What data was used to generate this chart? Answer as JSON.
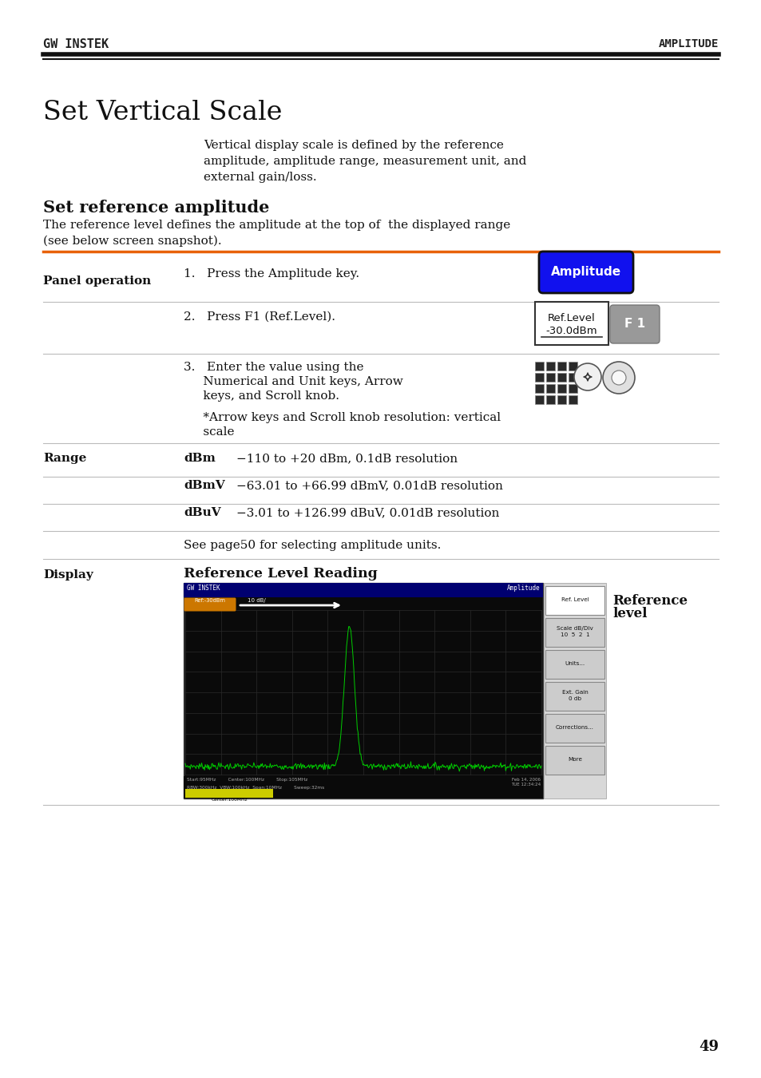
{
  "page_bg": "#ffffff",
  "header_logo": "GW INSTEK",
  "header_right": "AMPLITUDE",
  "title": "Set Vertical Scale",
  "intro_text": "Vertical display scale is defined by the reference\namplitude, amplitude range, measurement unit, and\nexternal gain/loss.",
  "section_title": "Set reference amplitude",
  "section_intro1": "The reference level defines the amplitude at the top of  the displayed range",
  "section_intro2": "(see below screen snapshot).",
  "panel_op_label": "Panel operation",
  "step1_text": "1.   Press the Amplitude key.",
  "step2_text": "2.   Press F1 (Ref.Level).",
  "step3_line1": "3.   Enter the value using the",
  "step3_line2": "     Numerical and Unit keys, Arrow",
  "step3_line3": "     keys, and Scroll knob.",
  "step3_note1": "     *Arrow keys and Scroll knob resolution: vertical",
  "step3_note2": "     scale",
  "range_label": "Range",
  "range_rows": [
    [
      "dBm",
      "−110 to +20 dBm, 0.1dB resolution"
    ],
    [
      "dBmV",
      "−63.01 to +66.99 dBmV, 0.01dB resolution"
    ],
    [
      "dBuV",
      "−3.01 to +126.99 dBuV, 0.01dB resolution"
    ]
  ],
  "range_note": "See page50 for selecting amplitude units.",
  "display_label": "Display",
  "display_section_title": "Reference Level Reading",
  "ref_level_label_line1": "Reference",
  "ref_level_label_line2": "level",
  "amplitude_btn_color": "#1111ee",
  "amplitude_btn_text": "Amplitude",
  "f1_btn_color": "#999999",
  "f1_btn_text": "F 1",
  "ref_level_line1": "Ref.Level",
  "ref_level_line2": "-30.0dBm",
  "page_number": "49",
  "orange_line_color": "#e8620a",
  "header_line_color": "#1a1a1a",
  "divider_color": "#bbbbbb"
}
